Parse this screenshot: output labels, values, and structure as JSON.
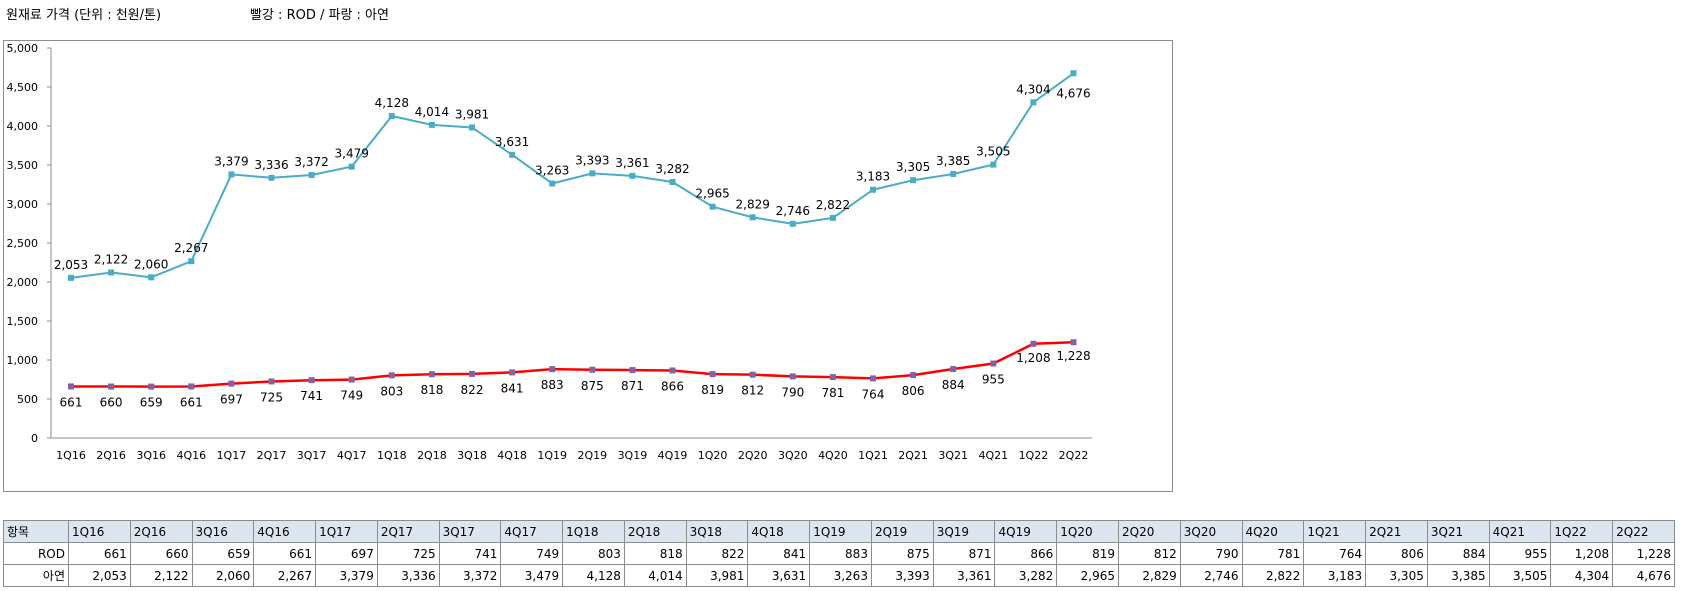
{
  "header": {
    "title": "원재료 가격 (단위 : 천원/톤)",
    "legend_note": "빨강 : ROD / 파랑 : 아연"
  },
  "chart_data": {
    "type": "line",
    "categories": [
      "1Q16",
      "2Q16",
      "3Q16",
      "4Q16",
      "1Q17",
      "2Q17",
      "3Q17",
      "4Q17",
      "1Q18",
      "2Q18",
      "3Q18",
      "4Q18",
      "1Q19",
      "2Q19",
      "3Q19",
      "4Q19",
      "1Q20",
      "2Q20",
      "3Q20",
      "4Q20",
      "1Q21",
      "2Q21",
      "3Q21",
      "4Q21",
      "1Q22",
      "2Q22"
    ],
    "ylim": [
      0,
      5000
    ],
    "yticks": [
      0,
      500,
      1000,
      1500,
      2000,
      2500,
      3000,
      3500,
      4000,
      4500,
      5000
    ],
    "ytick_labels": [
      "0",
      "500",
      "1,000",
      "1,500",
      "2,000",
      "2,500",
      "3,000",
      "3,500",
      "4,000",
      "4,500",
      "5,000"
    ],
    "series": [
      {
        "name": "아연",
        "color": "#4bacc6",
        "marker_color": "#4bacc6",
        "values": [
          2053,
          2122,
          2060,
          2267,
          3379,
          3336,
          3372,
          3479,
          4128,
          4014,
          3981,
          3631,
          3263,
          3393,
          3361,
          3282,
          2965,
          2829,
          2746,
          2822,
          3183,
          3305,
          3385,
          3505,
          4304,
          4676
        ],
        "labels": [
          "2,053",
          "2,122",
          "2,060",
          "2,267",
          "3,379",
          "3,336",
          "3,372",
          "3,479",
          "4,128",
          "4,014",
          "3,981",
          "3,631",
          "3,263",
          "3,393",
          "3,361",
          "3,282",
          "2,965",
          "2,829",
          "2,746",
          "2,822",
          "3,183",
          "3,305",
          "3,385",
          "3,505",
          "4,304",
          "4,676"
        ]
      },
      {
        "name": "ROD",
        "color": "#ff0000",
        "marker_color": "#8064a2",
        "values": [
          661,
          660,
          659,
          661,
          697,
          725,
          741,
          749,
          803,
          818,
          822,
          841,
          883,
          875,
          871,
          866,
          819,
          812,
          790,
          781,
          764,
          806,
          884,
          955,
          1208,
          1228
        ],
        "labels": [
          "661",
          "660",
          "659",
          "661",
          "697",
          "725",
          "741",
          "749",
          "803",
          "818",
          "822",
          "841",
          "883",
          "875",
          "871",
          "866",
          "819",
          "812",
          "790",
          "781",
          "764",
          "806",
          "884",
          "955",
          "1,208",
          "1,228"
        ]
      }
    ],
    "grid": false,
    "legend": "none"
  },
  "table": {
    "header_label": "항목",
    "rows": [
      {
        "label": "ROD",
        "values": [
          "661",
          "660",
          "659",
          "661",
          "697",
          "725",
          "741",
          "749",
          "803",
          "818",
          "822",
          "841",
          "883",
          "875",
          "871",
          "866",
          "819",
          "812",
          "790",
          "781",
          "764",
          "806",
          "884",
          "955",
          "1,208",
          "1,228"
        ]
      },
      {
        "label": "아연",
        "values": [
          "2,053",
          "2,122",
          "2,060",
          "2,267",
          "3,379",
          "3,336",
          "3,372",
          "3,479",
          "4,128",
          "4,014",
          "3,981",
          "3,631",
          "3,263",
          "3,393",
          "3,361",
          "3,282",
          "2,965",
          "2,829",
          "2,746",
          "2,822",
          "3,183",
          "3,305",
          "3,385",
          "3,505",
          "4,304",
          "4,676"
        ]
      }
    ]
  }
}
